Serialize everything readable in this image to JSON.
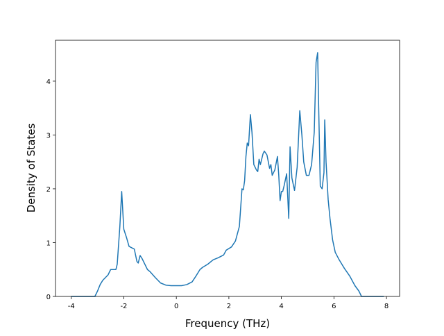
{
  "chart_data": {
    "type": "line",
    "x_label": "Frequency (THz)",
    "y_label": "Density of States",
    "x": [
      -4,
      -3.1,
      -3.0,
      -2.9,
      -2.8,
      -2.6,
      -2.5,
      -2.4,
      -2.3,
      -2.25,
      -2.15,
      -2.08,
      -2.0,
      -1.9,
      -1.8,
      -1.6,
      -1.5,
      -1.45,
      -1.38,
      -1.3,
      -1.1,
      -1.0,
      -0.8,
      -0.6,
      -0.4,
      -0.2,
      0,
      0.2,
      0.4,
      0.6,
      0.75,
      0.9,
      1.0,
      1.2,
      1.4,
      1.6,
      1.8,
      1.9,
      2.1,
      2.25,
      2.4,
      2.5,
      2.55,
      2.6,
      2.65,
      2.7,
      2.75,
      2.82,
      2.88,
      2.95,
      3.05,
      3.1,
      3.15,
      3.2,
      3.3,
      3.35,
      3.45,
      3.55,
      3.6,
      3.65,
      3.75,
      3.85,
      3.9,
      3.95,
      4.0,
      4.05,
      4.1,
      4.2,
      4.28,
      4.33,
      4.4,
      4.5,
      4.6,
      4.7,
      4.78,
      4.85,
      4.95,
      5.05,
      5.15,
      5.25,
      5.32,
      5.38,
      5.42,
      5.48,
      5.55,
      5.62,
      5.65,
      5.7,
      5.78,
      5.85,
      5.95,
      6.05,
      6.2,
      6.4,
      6.6,
      6.8,
      6.95,
      7.05,
      7.9
    ],
    "series": [
      {
        "color": "#1f77b4",
        "values": [
          0,
          0,
          0.1,
          0.22,
          0.3,
          0.4,
          0.5,
          0.5,
          0.5,
          0.6,
          1.3,
          1.95,
          1.25,
          1.1,
          0.93,
          0.88,
          0.65,
          0.62,
          0.76,
          0.7,
          0.5,
          0.46,
          0.35,
          0.25,
          0.21,
          0.2,
          0.2,
          0.2,
          0.22,
          0.27,
          0.38,
          0.5,
          0.54,
          0.6,
          0.68,
          0.72,
          0.77,
          0.86,
          0.92,
          1.03,
          1.3,
          2.0,
          1.98,
          2.15,
          2.6,
          2.85,
          2.8,
          3.38,
          3.05,
          2.45,
          2.35,
          2.32,
          2.55,
          2.45,
          2.65,
          2.7,
          2.63,
          2.38,
          2.45,
          2.25,
          2.35,
          2.6,
          2.25,
          1.78,
          1.95,
          1.95,
          2.05,
          2.28,
          1.45,
          2.78,
          2.2,
          1.97,
          2.4,
          3.45,
          3.0,
          2.5,
          2.25,
          2.25,
          2.45,
          3.05,
          4.35,
          4.53,
          3.5,
          2.05,
          2.0,
          2.3,
          3.28,
          2.5,
          1.8,
          1.45,
          1.05,
          0.82,
          0.68,
          0.52,
          0.38,
          0.2,
          0.1,
          0,
          0
        ]
      }
    ],
    "xlim": [
      -4.6,
      8.5
    ],
    "ylim": [
      0,
      4.76
    ],
    "xticks": [
      -4,
      -2,
      0,
      2,
      4,
      6,
      8
    ],
    "yticks": [
      0,
      1,
      2,
      3,
      4
    ]
  }
}
